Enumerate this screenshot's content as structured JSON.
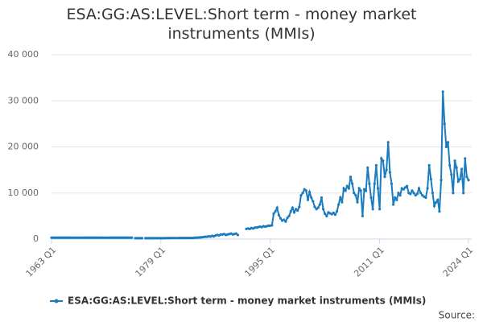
{
  "chart_data": {
    "type": "line",
    "title": "ESA:GG:AS:LEVEL:Short term - money market instruments (MMIs)",
    "source_label": "Source:",
    "categories": [
      "1963 Q1",
      null,
      null,
      null,
      null,
      null,
      null,
      null,
      null,
      null,
      null,
      null,
      null,
      null,
      null,
      null,
      null,
      null,
      null,
      null,
      null,
      null,
      null,
      null,
      null,
      null,
      null,
      null,
      null,
      null,
      null,
      null,
      null,
      null,
      null,
      null,
      null,
      null,
      null,
      null,
      null,
      null,
      null,
      null,
      null,
      null,
      null,
      null,
      null,
      null,
      null,
      null,
      null,
      null,
      null,
      null,
      null,
      null,
      null,
      null,
      null,
      null,
      null,
      null,
      "1979 Q1",
      null,
      null,
      null,
      null,
      null,
      null,
      null,
      null,
      null,
      null,
      null,
      null,
      null,
      null,
      null,
      null,
      null,
      null,
      null,
      null,
      null,
      null,
      null,
      null,
      null,
      null,
      null,
      null,
      null,
      null,
      null,
      null,
      null,
      null,
      null,
      null,
      null,
      null,
      null,
      null,
      null,
      null,
      null,
      null,
      null,
      null,
      null,
      null,
      null,
      null,
      null,
      null,
      null,
      null,
      null,
      null,
      null,
      null,
      null,
      null,
      null,
      null,
      null,
      "1995 Q1",
      null,
      null,
      null,
      null,
      null,
      null,
      null,
      null,
      null,
      null,
      null,
      null,
      null,
      null,
      null,
      null,
      null,
      null,
      null,
      null,
      null,
      null,
      null,
      null,
      null,
      null,
      null,
      null,
      null,
      null,
      null,
      null,
      null,
      null,
      null,
      null,
      null,
      null,
      null,
      null,
      null,
      null,
      null,
      null,
      null,
      null,
      null,
      null,
      null,
      null,
      null,
      null,
      null,
      null,
      null,
      null,
      null,
      null,
      null,
      null,
      null,
      null,
      null,
      "2011 Q1",
      null,
      null,
      null,
      null,
      null,
      null,
      null,
      null,
      null,
      null,
      null,
      null,
      null,
      null,
      null,
      null,
      null,
      null,
      null,
      null,
      null,
      null,
      null,
      null,
      null,
      null,
      null,
      null,
      null,
      null,
      null,
      null,
      null,
      null,
      null,
      null,
      null,
      null,
      null,
      null,
      null,
      null,
      null,
      null,
      null,
      null,
      null,
      null,
      null,
      null,
      null,
      "2024 Q1"
    ],
    "series": [
      {
        "name": "ESA:GG:AS:LEVEL:Short term - money market instruments (MMIs)",
        "color": "#1a7bbf",
        "values": [
          300,
          300,
          300,
          300,
          300,
          300,
          300,
          300,
          300,
          300,
          300,
          300,
          300,
          300,
          300,
          300,
          300,
          300,
          300,
          300,
          300,
          300,
          300,
          300,
          300,
          300,
          300,
          300,
          300,
          300,
          300,
          300,
          300,
          300,
          300,
          300,
          300,
          300,
          300,
          300,
          300,
          300,
          300,
          300,
          300,
          300,
          300,
          300,
          null,
          200,
          200,
          200,
          200,
          200,
          null,
          200,
          200,
          200,
          200,
          200,
          200,
          200,
          200,
          200,
          200,
          200,
          200,
          220,
          220,
          220,
          220,
          230,
          230,
          230,
          230,
          240,
          240,
          240,
          250,
          250,
          250,
          250,
          250,
          250,
          300,
          300,
          350,
          350,
          400,
          450,
          500,
          500,
          600,
          550,
          700,
          600,
          800,
          900,
          800,
          1000,
          1000,
          1100,
          900,
          1000,
          1100,
          1200,
          1000,
          1100,
          1200,
          900,
          null,
          null,
          null,
          null,
          2200,
          2300,
          2200,
          2400,
          2300,
          2500,
          2500,
          2600,
          2700,
          2600,
          2800,
          2700,
          2800,
          2900,
          2900,
          3000,
          5500,
          6000,
          6800,
          5200,
          4500,
          4000,
          4200,
          3800,
          4600,
          5000,
          6000,
          6800,
          5800,
          6500,
          6200,
          7000,
          9500,
          10000,
          10800,
          10500,
          8500,
          10200,
          9000,
          8200,
          7000,
          6500,
          6800,
          7500,
          9000,
          6500,
          5500,
          5000,
          5800,
          5600,
          5400,
          5700,
          5300,
          6000,
          7500,
          9000,
          8000,
          11000,
          10500,
          11500,
          11000,
          13500,
          12000,
          10000,
          9500,
          8000,
          11000,
          10500,
          5000,
          10800,
          10500,
          15500,
          12000,
          9000,
          6500,
          12000,
          16000,
          11000,
          6500,
          17500,
          17000,
          13500,
          15000,
          21000,
          14500,
          12000,
          7500,
          9000,
          8500,
          10000,
          9500,
          11000,
          10800,
          11200,
          11500,
          10000,
          9800,
          10500,
          10000,
          9500,
          9800,
          11000,
          10000,
          9500,
          9200,
          9000,
          11000,
          16000,
          13000,
          10000,
          7200,
          8000,
          8500,
          6000,
          12800,
          32000,
          25000,
          20000,
          21000,
          16000,
          14000,
          10000,
          17000,
          15500,
          12500,
          13000,
          15200,
          10000,
          17500,
          13500,
          12800
        ]
      }
    ],
    "ylim": [
      0,
      40000
    ],
    "yticks": [
      0,
      {
        "value": 10000,
        "label": "10 000"
      },
      {
        "value": 20000,
        "label": "20 000"
      },
      {
        "value": 30000,
        "label": "30 000"
      },
      {
        "value": 40000,
        "label": "40 000"
      }
    ],
    "grid": true,
    "legend": "bottom"
  }
}
